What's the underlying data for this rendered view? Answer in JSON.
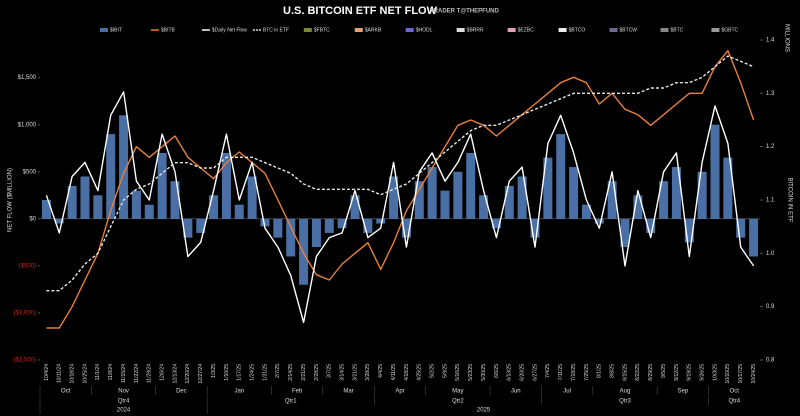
{
  "chart_data": {
    "type": "combo",
    "title": "U.S. BITCOIN ETF NET FLOW",
    "subtitle": "TRADER T@THEPFUND",
    "ylabel": "NET FLOW ($MILLION)",
    "y2label": "BITCOIN IN ETF",
    "y2unit": "MILLIONS",
    "categories": [
      "10/4/24",
      "10/11/24",
      "10/18/24",
      "10/25/24",
      "11/1/24",
      "11/8/24",
      "11/15/24",
      "11/22/24",
      "11/29/24",
      "12/6/24",
      "12/13/24",
      "12/20/24",
      "12/27/24",
      "1/3/25",
      "1/10/25",
      "1/17/25",
      "1/24/25",
      "1/31/25",
      "2/7/25",
      "2/14/25",
      "2/21/25",
      "2/28/25",
      "3/7/25",
      "3/14/25",
      "3/21/25",
      "3/28/25",
      "4/4/25",
      "4/11/25",
      "4/18/25",
      "4/25/25",
      "5/2/25",
      "5/9/25",
      "5/16/25",
      "5/23/25",
      "5/30/25",
      "6/6/25",
      "6/13/25",
      "6/20/25",
      "6/27/25",
      "7/4/25",
      "7/11/25",
      "7/18/25",
      "7/25/25",
      "8/1/25",
      "8/8/25",
      "8/15/25",
      "8/22/25",
      "8/29/25",
      "9/5/25",
      "9/12/25",
      "9/19/25",
      "9/26/25",
      "10/3/25",
      "10/10/25",
      "10/17/25",
      "10/24/25"
    ],
    "months": [
      "Oct",
      "Nov",
      "Dec",
      "Jan",
      "Feb",
      "Mar",
      "Apr",
      "May",
      "Jun",
      "Jul",
      "Aug",
      "Sep",
      "Oct"
    ],
    "quarters": [
      "Qtr4",
      "Qtr1",
      "Qtr2",
      "Qtr3",
      "Qtr4"
    ],
    "years": [
      "2024",
      "2025"
    ],
    "series": [
      {
        "name": "$IBIT",
        "color": "#4a6fa5",
        "style": "bar",
        "values": [
          200,
          -50,
          350,
          450,
          250,
          900,
          1100,
          300,
          150,
          700,
          400,
          -200,
          -150,
          250,
          700,
          150,
          450,
          -80,
          -200,
          -400,
          -700,
          -300,
          -150,
          -100,
          250,
          -150,
          -50,
          450,
          -200,
          400,
          550,
          300,
          500,
          700,
          250,
          -100,
          350,
          450,
          -200,
          650,
          900,
          550,
          150,
          -50,
          400,
          -300,
          250,
          -150,
          400,
          550,
          -250,
          500,
          1000,
          650,
          -200,
          -400
        ]
      },
      {
        "name": "$BITB",
        "color": "#e8803a",
        "style": "line",
        "axis": "y2",
        "values": [
          0.86,
          0.86,
          0.9,
          0.95,
          1.0,
          1.08,
          1.15,
          1.2,
          1.18,
          1.2,
          1.22,
          1.18,
          1.16,
          1.14,
          1.17,
          1.19,
          1.17,
          1.15,
          1.1,
          1.05,
          1.0,
          0.96,
          0.95,
          0.98,
          1.0,
          1.02,
          0.97,
          1.02,
          1.08,
          1.12,
          1.16,
          1.2,
          1.24,
          1.25,
          1.24,
          1.22,
          1.24,
          1.26,
          1.28,
          1.3,
          1.32,
          1.33,
          1.32,
          1.28,
          1.3,
          1.27,
          1.26,
          1.24,
          1.26,
          1.28,
          1.3,
          1.3,
          1.35,
          1.38,
          1.32,
          1.25
        ]
      },
      {
        "name": "$Daily Net Flow",
        "color": "#ffffff",
        "style": "line",
        "values": [
          250,
          -150,
          450,
          600,
          300,
          1100,
          1350,
          400,
          200,
          900,
          500,
          -400,
          -250,
          300,
          900,
          200,
          600,
          -100,
          -300,
          -600,
          -1100,
          -400,
          -200,
          -150,
          300,
          -200,
          -100,
          600,
          -300,
          500,
          700,
          400,
          600,
          900,
          300,
          -200,
          400,
          550,
          -300,
          800,
          1100,
          700,
          200,
          -100,
          500,
          -500,
          300,
          -200,
          500,
          700,
          -400,
          600,
          1200,
          800,
          -300,
          -500
        ]
      },
      {
        "name": "BTC in ETF",
        "color": "#e6e6e6",
        "style": "dashed",
        "axis": "y2",
        "values": [
          0.93,
          0.93,
          0.95,
          0.98,
          1.0,
          1.05,
          1.1,
          1.12,
          1.13,
          1.15,
          1.17,
          1.17,
          1.16,
          1.16,
          1.18,
          1.18,
          1.18,
          1.17,
          1.16,
          1.15,
          1.13,
          1.12,
          1.12,
          1.12,
          1.12,
          1.12,
          1.11,
          1.12,
          1.13,
          1.15,
          1.17,
          1.19,
          1.21,
          1.23,
          1.24,
          1.24,
          1.25,
          1.26,
          1.27,
          1.28,
          1.29,
          1.3,
          1.3,
          1.3,
          1.3,
          1.3,
          1.3,
          1.31,
          1.31,
          1.32,
          1.32,
          1.33,
          1.35,
          1.37,
          1.36,
          1.35
        ]
      }
    ],
    "other_legend": [
      {
        "name": "$FBTC",
        "color": "#7a8a3a"
      },
      {
        "name": "$ARKB",
        "color": "#e8a070"
      },
      {
        "name": "$HODL",
        "color": "#6a6ad0"
      },
      {
        "name": "$BRRR",
        "color": "#dddddd"
      },
      {
        "name": "$EZBC",
        "color": "#e0a0b0"
      },
      {
        "name": "$BTCO",
        "color": "#eeeeee"
      },
      {
        "name": "$BTCW",
        "color": "#6a6a90"
      },
      {
        "name": "$BTC",
        "color": "#888888"
      },
      {
        "name": "$GBTC",
        "color": "#999999"
      }
    ],
    "ylim": [
      -1500,
      1900
    ],
    "yticks": [
      {
        "value": 1500,
        "label": "$1,500"
      },
      {
        "value": 1000,
        "label": "$1,000"
      },
      {
        "value": 500,
        "label": "$500"
      },
      {
        "value": 0,
        "label": "$0"
      },
      {
        "value": -500,
        "label": "($500)"
      },
      {
        "value": -1000,
        "label": "($1,000)"
      },
      {
        "value": -1500,
        "label": "($1,500)"
      }
    ],
    "negative_tick_color": "#d02020",
    "y2lim": [
      0.8,
      1.4
    ],
    "y2ticks": [
      0.8,
      0.9,
      {
        "value": 1,
        "label": "1.0"
      },
      1.1,
      1.2,
      1.3,
      1.4
    ]
  }
}
